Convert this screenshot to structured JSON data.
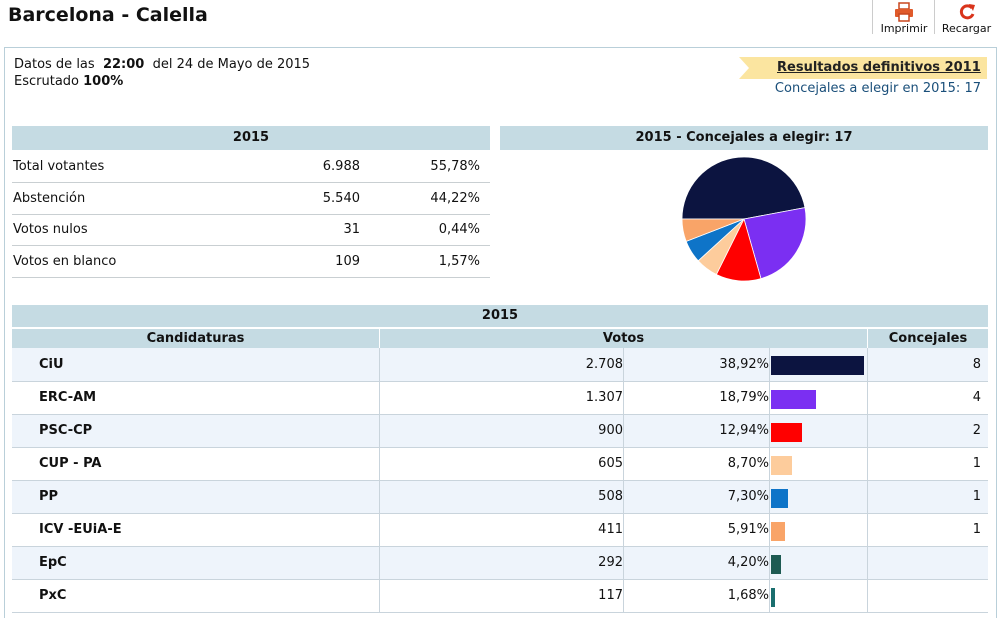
{
  "page": {
    "title": "Barcelona - Calella"
  },
  "toolbar": {
    "print_label": "Imprimir",
    "reload_label": "Recargar"
  },
  "info": {
    "datos_prefix": "Datos de las",
    "time": "22:00",
    "date_text": "del 24 de Mayo de 2015",
    "escrutado_label": "Escrutado",
    "escrutado_value": "100%"
  },
  "links": {
    "resultados": "Resultados definitivos 2011",
    "concejales": "Concejales a elegir en 2015: 17"
  },
  "summary": {
    "header": "2015",
    "rows": [
      {
        "label": "Total votantes",
        "value": "6.988",
        "pct": "55,78%"
      },
      {
        "label": "Abstención",
        "value": "5.540",
        "pct": "44,22%"
      },
      {
        "label": "Votos nulos",
        "value": "31",
        "pct": "0,44%"
      },
      {
        "label": "Votos en blanco",
        "value": "109",
        "pct": "1,57%"
      }
    ]
  },
  "pie": {
    "header": "2015 - Concejales a elegir: 17"
  },
  "results": {
    "header": "2015",
    "col_candidaturas": "Candidaturas",
    "col_votos": "Votos",
    "col_concejales": "Concejales",
    "rows": [
      {
        "name": "CiU",
        "votes": "2.708",
        "pct": "38,92%",
        "pct_value": 38.92,
        "concejales": "8",
        "color": "#0c1440"
      },
      {
        "name": "ERC-AM",
        "votes": "1.307",
        "pct": "18,79%",
        "pct_value": 18.79,
        "concejales": "4",
        "color": "#7b2ff2"
      },
      {
        "name": "PSC-CP",
        "votes": "900",
        "pct": "12,94%",
        "pct_value": 12.94,
        "concejales": "2",
        "color": "#ff0000"
      },
      {
        "name": "CUP - PA",
        "votes": "605",
        "pct": "8,70%",
        "pct_value": 8.7,
        "concejales": "1",
        "color": "#fdcc9c"
      },
      {
        "name": "PP",
        "votes": "508",
        "pct": "7,30%",
        "pct_value": 7.3,
        "concejales": "1",
        "color": "#0e74c8"
      },
      {
        "name": "ICV -EUiA-E",
        "votes": "411",
        "pct": "5,91%",
        "pct_value": 5.91,
        "concejales": "1",
        "color": "#f9a468"
      },
      {
        "name": "EpC",
        "votes": "292",
        "pct": "4,20%",
        "pct_value": 4.2,
        "concejales": "",
        "color": "#1d5a52"
      },
      {
        "name": "PxC",
        "votes": "117",
        "pct": "1,68%",
        "pct_value": 1.68,
        "concejales": "",
        "color": "#1a6e6e"
      }
    ]
  },
  "chart_data": {
    "type": "pie",
    "title": "2015 - Concejales a elegir: 17",
    "categories": [
      "CiU",
      "ERC-AM",
      "PSC-CP",
      "CUP - PA",
      "PP",
      "ICV -EUiA-E"
    ],
    "values": [
      8,
      4,
      2,
      1,
      1,
      1
    ],
    "colors": [
      "#0c1440",
      "#7b2ff2",
      "#ff0000",
      "#fdcc9c",
      "#0e74c8",
      "#f9a468"
    ]
  }
}
